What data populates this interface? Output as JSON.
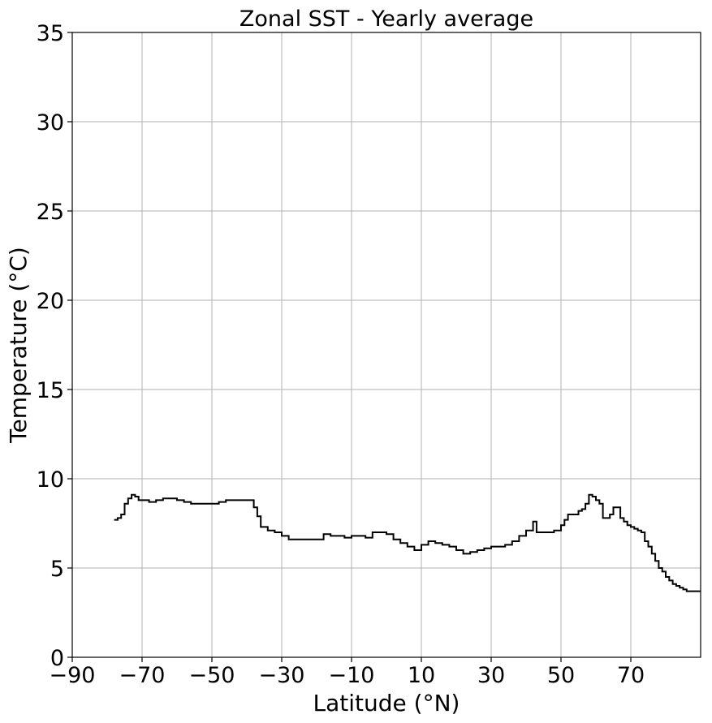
{
  "chart_data": {
    "type": "line",
    "step": true,
    "title": "Zonal SST - Yearly average",
    "xlabel": "Latitude (°N)",
    "ylabel": "Temperature (°C)",
    "xlim": [
      -90,
      90
    ],
    "ylim": [
      0,
      35
    ],
    "xticks": [
      -90,
      -70,
      -50,
      -30,
      -10,
      10,
      30,
      50,
      70
    ],
    "xtick_labels": [
      "−90",
      "−70",
      "−50",
      "−30",
      "−10",
      "10",
      "30",
      "50",
      "70"
    ],
    "yticks": [
      0,
      5,
      10,
      15,
      20,
      25,
      30,
      35
    ],
    "ytick_labels": [
      "0",
      "5",
      "10",
      "15",
      "20",
      "25",
      "30",
      "35"
    ],
    "grid": true,
    "legend": false,
    "colors": {
      "line": "#000000",
      "grid": "#b0b0b0"
    },
    "series": [
      {
        "x": [
          -78,
          -77,
          -76,
          -75,
          -74,
          -73,
          -72,
          -71,
          -70,
          -68,
          -66,
          -64,
          -62,
          -60,
          -58,
          -56,
          -54,
          -52,
          -50,
          -48,
          -46,
          -44,
          -42,
          -40,
          -38,
          -37,
          -36,
          -35,
          -34,
          -32,
          -30,
          -28,
          -26,
          -24,
          -22,
          -20,
          -18,
          -16,
          -14,
          -12,
          -10,
          -8,
          -6,
          -4,
          -2,
          0,
          2,
          4,
          6,
          8,
          10,
          12,
          14,
          16,
          18,
          20,
          22,
          24,
          26,
          28,
          30,
          32,
          34,
          36,
          38,
          40,
          42,
          43,
          44,
          45,
          46,
          48,
          50,
          51,
          52,
          54,
          55,
          56,
          57,
          58,
          59,
          60,
          61,
          62,
          63,
          64,
          65,
          66,
          67,
          68,
          69,
          70,
          71,
          72,
          73,
          74,
          75,
          76,
          77,
          78,
          79,
          80,
          81,
          82,
          83,
          84,
          85,
          86,
          87,
          88,
          89
        ],
        "y": [
          7.7,
          7.8,
          8.0,
          8.6,
          8.9,
          9.1,
          9.0,
          8.8,
          8.8,
          8.7,
          8.8,
          8.9,
          8.9,
          8.8,
          8.7,
          8.6,
          8.6,
          8.6,
          8.6,
          8.7,
          8.8,
          8.8,
          8.8,
          8.8,
          8.4,
          7.9,
          7.3,
          7.3,
          7.1,
          7.0,
          6.8,
          6.6,
          6.6,
          6.6,
          6.6,
          6.6,
          6.9,
          6.8,
          6.8,
          6.7,
          6.8,
          6.8,
          6.7,
          7.0,
          7.0,
          6.9,
          6.6,
          6.4,
          6.2,
          6.0,
          6.3,
          6.5,
          6.4,
          6.3,
          6.2,
          6.0,
          5.8,
          5.9,
          6.0,
          6.1,
          6.2,
          6.2,
          6.3,
          6.5,
          6.8,
          7.1,
          7.6,
          7.0,
          7.0,
          7.0,
          7.0,
          7.1,
          7.4,
          7.7,
          8.0,
          8.0,
          8.2,
          8.3,
          8.6,
          9.1,
          9.0,
          8.8,
          8.6,
          7.8,
          7.8,
          8.0,
          8.4,
          8.4,
          7.8,
          7.6,
          7.4,
          7.3,
          7.2,
          7.1,
          7.0,
          6.5,
          6.2,
          5.8,
          5.4,
          5.0,
          4.8,
          4.5,
          4.3,
          4.1,
          4.0,
          3.9,
          3.8,
          3.7,
          3.7,
          3.7,
          3.7
        ]
      }
    ]
  }
}
